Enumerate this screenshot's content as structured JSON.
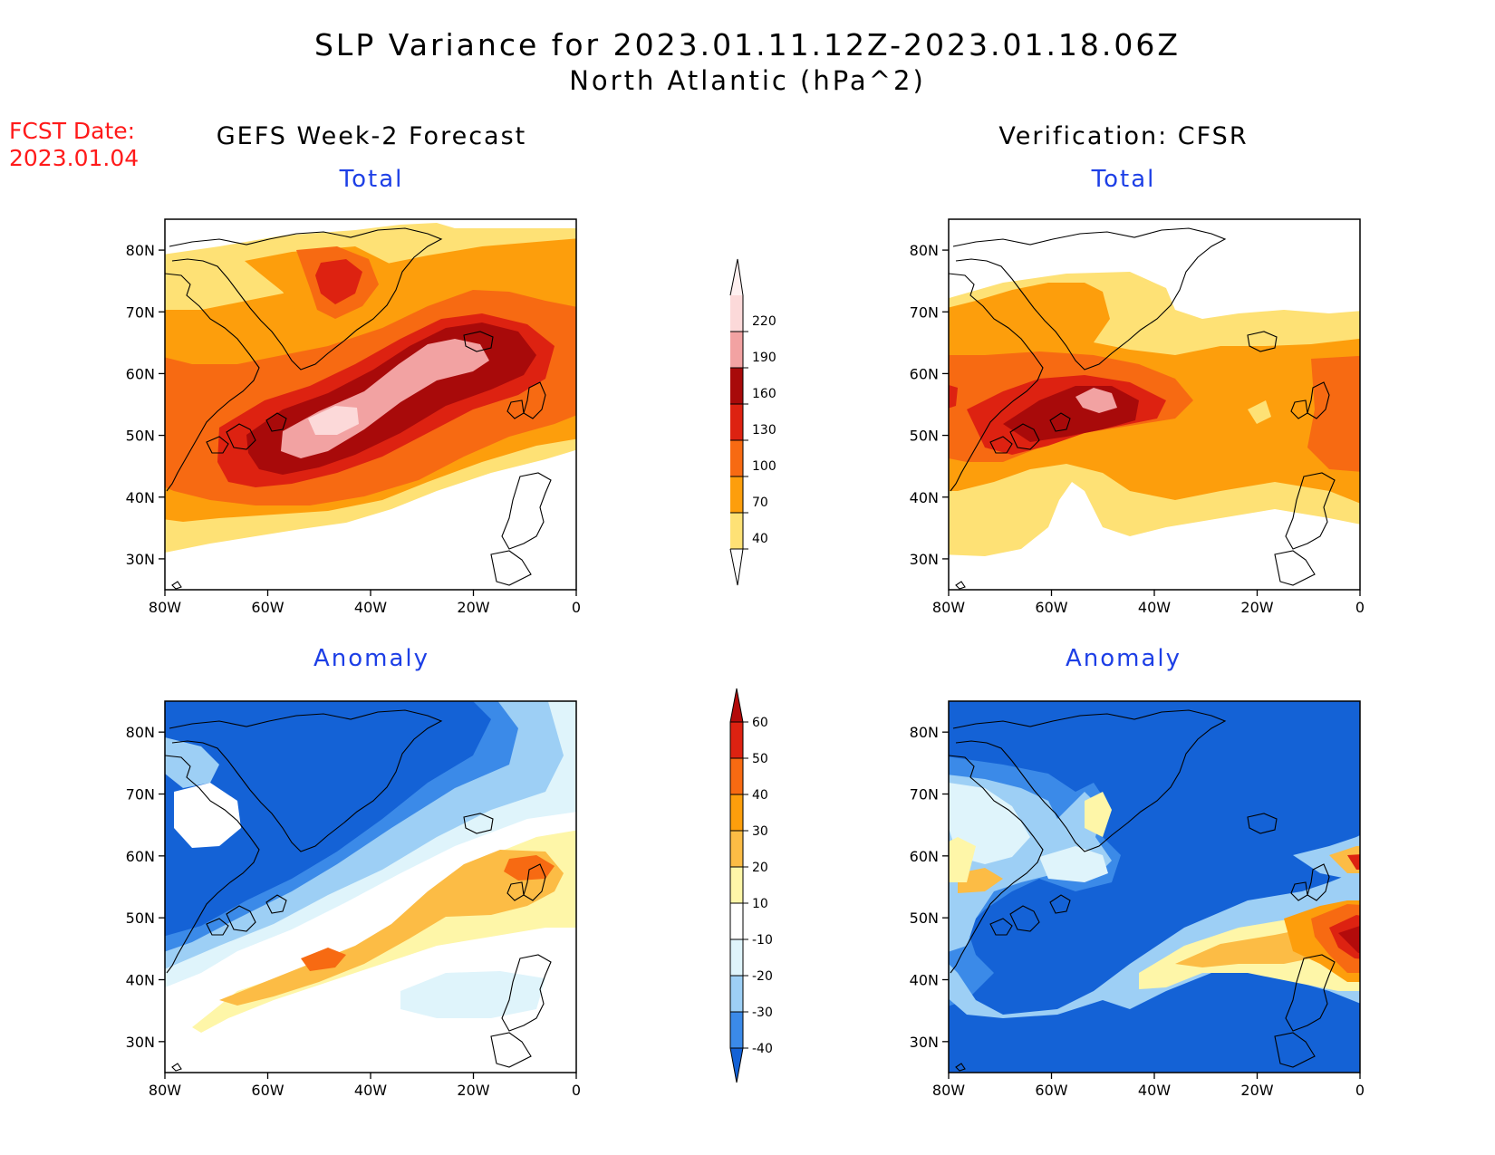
{
  "header": {
    "title_line1": "SLP Variance for 2023.01.11.12Z-2023.01.18.06Z",
    "title_line2": "North Atlantic (hPa^2)",
    "fcst_label": "FCST Date:",
    "fcst_date": "2023.01.04"
  },
  "columns": {
    "left": "GEFS Week-2 Forecast",
    "right": "Verification: CFSR"
  },
  "panels": [
    {
      "id": "fcst-total",
      "label": "Total"
    },
    {
      "id": "verif-total",
      "label": "Total"
    },
    {
      "id": "fcst-anomaly",
      "label": "Anomaly"
    },
    {
      "id": "verif-anomaly",
      "label": "Anomaly"
    }
  ],
  "axes": {
    "lon_labels": [
      "80W",
      "60W",
      "40W",
      "20W",
      "0"
    ],
    "lat_labels": [
      "80N",
      "70N",
      "60N",
      "50N",
      "40N",
      "30N"
    ],
    "lon_range": [
      -80,
      0
    ],
    "lat_range": [
      25,
      85
    ]
  },
  "colorbars": {
    "total": {
      "levels": [
        "220",
        "190",
        "160",
        "130",
        "100",
        "70",
        "40"
      ],
      "colors": [
        "#fcd9d9",
        "#f2a2a2",
        "#a80a0a",
        "#dd2211",
        "#f76a12",
        "#fd9e0c",
        "#fee175"
      ]
    },
    "anomaly": {
      "levels": [
        "60",
        "50",
        "40",
        "30",
        "20",
        "10",
        "-10",
        "-20",
        "-30",
        "-40"
      ],
      "colors": [
        "#b30b0b",
        "#dd2211",
        "#f76a12",
        "#fd9e0c",
        "#fcbc45",
        "#fef6a8",
        "#ffffff",
        "#dff4fb",
        "#9dcff5",
        "#3b8ae8",
        "#1462d6"
      ]
    }
  }
}
